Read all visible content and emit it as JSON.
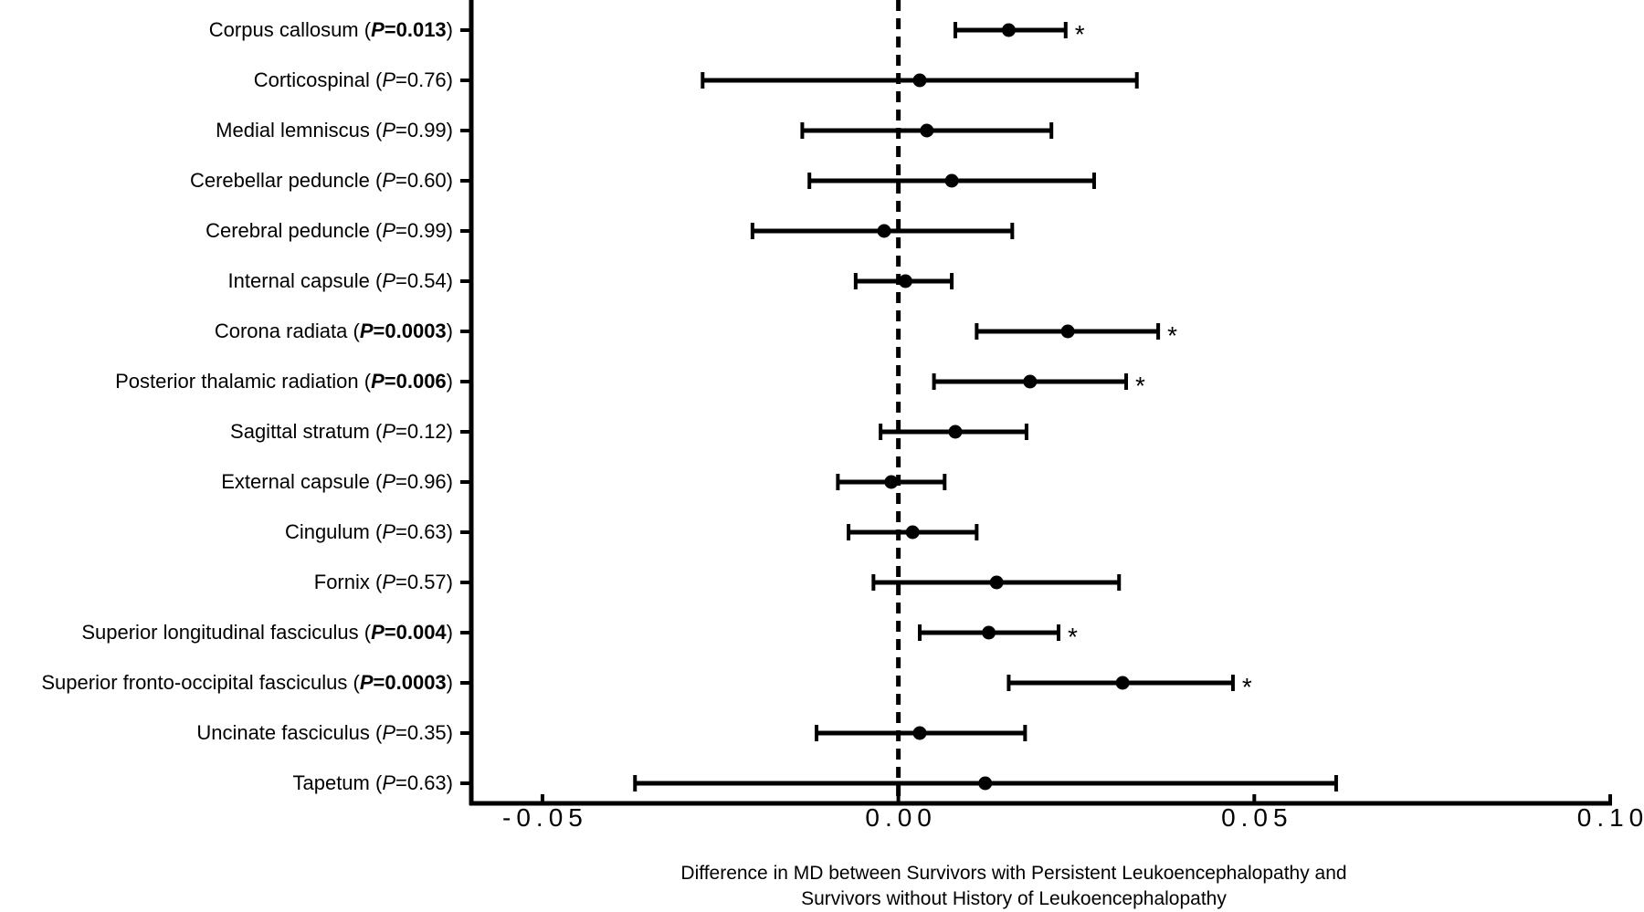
{
  "chart_data": {
    "type": "forest",
    "xlabel_line1": "Difference in MD between Survivors with Persistent Leukoencephalopathy and",
    "xlabel_line2": "Survivors without History of Leukoencephalopathy",
    "xlim": [
      -0.06,
      0.1
    ],
    "xticks": [
      -0.05,
      0.0,
      0.05,
      0.1
    ],
    "xtick_labels": [
      "-0.05",
      "0.00",
      "0.05",
      "0.10"
    ],
    "reference_line": 0.0,
    "significance_marker": "*",
    "rows": [
      {
        "name": "Corpus callosum",
        "p_label": "P",
        "p_value": "=0.013",
        "significant": true,
        "est": 0.0155,
        "lo": 0.008,
        "hi": 0.0235
      },
      {
        "name": "Corticospinal",
        "p_label": "P",
        "p_value": "=0.76",
        "significant": false,
        "est": 0.003,
        "lo": -0.0275,
        "hi": 0.0335
      },
      {
        "name": "Medial lemniscus",
        "p_label": "P",
        "p_value": "=0.99",
        "significant": false,
        "est": 0.004,
        "lo": -0.0135,
        "hi": 0.0215
      },
      {
        "name": "Cerebellar peduncle",
        "p_label": "P",
        "p_value": "=0.60",
        "significant": false,
        "est": 0.0075,
        "lo": -0.0125,
        "hi": 0.0275
      },
      {
        "name": "Cerebral peduncle",
        "p_label": "P",
        "p_value": "=0.99",
        "significant": false,
        "est": -0.002,
        "lo": -0.0205,
        "hi": 0.016
      },
      {
        "name": "Internal capsule",
        "p_label": "P",
        "p_value": "=0.54",
        "significant": false,
        "est": 0.001,
        "lo": -0.006,
        "hi": 0.0075
      },
      {
        "name": "Corona radiata",
        "p_label": "P",
        "p_value": "=0.0003",
        "significant": true,
        "est": 0.0238,
        "lo": 0.011,
        "hi": 0.0365
      },
      {
        "name": "Posterior thalamic radiation",
        "p_label": "P",
        "p_value": "=0.006",
        "significant": true,
        "est": 0.0185,
        "lo": 0.005,
        "hi": 0.032
      },
      {
        "name": "Sagittal stratum ",
        "p_label": "P",
        "p_value": "=0.12",
        "significant": false,
        "est": 0.008,
        "lo": -0.0025,
        "hi": 0.018
      },
      {
        "name": "External capsule",
        "p_label": "P",
        "p_value": "=0.96",
        "significant": false,
        "est": -0.001,
        "lo": -0.0085,
        "hi": 0.0065
      },
      {
        "name": "Cingulum",
        "p_label": "P",
        "p_value": "=0.63",
        "significant": false,
        "est": 0.002,
        "lo": -0.007,
        "hi": 0.011
      },
      {
        "name": "Fornix",
        "p_label": "P",
        "p_value": "=0.57",
        "significant": false,
        "est": 0.0138,
        "lo": -0.0035,
        "hi": 0.031
      },
      {
        "name": "Superior longitudinal fasciculus",
        "p_label": "P",
        "p_value": "=0.004",
        "significant": true,
        "est": 0.0127,
        "lo": 0.003,
        "hi": 0.0225
      },
      {
        "name": "Superior fronto-occipital fasciculus",
        "p_label": "P",
        "p_value": "=0.0003",
        "significant": true,
        "est": 0.0315,
        "lo": 0.0155,
        "hi": 0.047
      },
      {
        "name": "Uncinate fasciculus",
        "p_label": "P",
        "p_value": "=0.35",
        "significant": false,
        "est": 0.003,
        "lo": -0.0115,
        "hi": 0.0178
      },
      {
        "name": "Tapetum",
        "p_label": "P",
        "p_value": "=0.63",
        "significant": false,
        "est": 0.0122,
        "lo": -0.037,
        "hi": 0.0615
      }
    ]
  }
}
